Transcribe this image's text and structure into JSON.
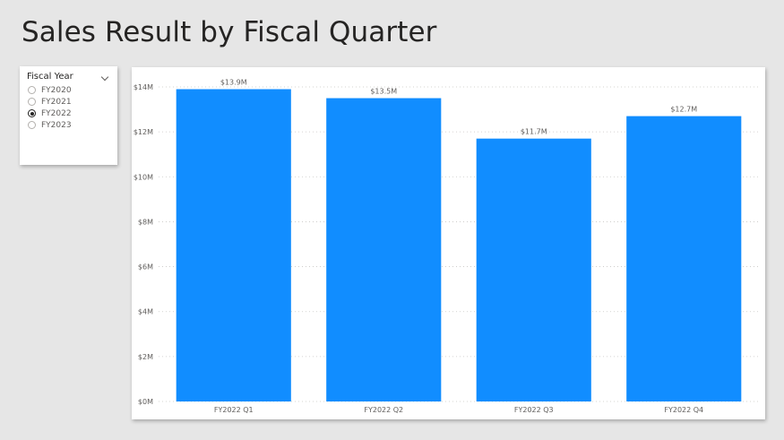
{
  "report": {
    "title": "Sales Result by Fiscal Quarter"
  },
  "slicer": {
    "title": "Fiscal Year",
    "options": [
      {
        "label": "FY2020",
        "selected": false
      },
      {
        "label": "FY2021",
        "selected": false
      },
      {
        "label": "FY2022",
        "selected": true
      },
      {
        "label": "FY2023",
        "selected": false
      }
    ]
  },
  "colors": {
    "bar": "#118dff",
    "background": "#e6e6e6"
  },
  "chart_data": {
    "type": "bar",
    "title": "",
    "xlabel": "",
    "ylabel": "",
    "categories": [
      "FY2022 Q1",
      "FY2022 Q2",
      "FY2022 Q3",
      "FY2022 Q4"
    ],
    "values": [
      13.9,
      13.5,
      11.7,
      12.7
    ],
    "data_labels": [
      "$13.9M",
      "$13.5M",
      "$11.7M",
      "$12.7M"
    ],
    "ylim": [
      0,
      14
    ],
    "y_ticks": [
      0,
      2,
      4,
      6,
      8,
      10,
      12,
      14
    ],
    "y_tick_labels": [
      "$0M",
      "$2M",
      "$4M",
      "$6M",
      "$8M",
      "$10M",
      "$12M",
      "$14M"
    ],
    "grid": true,
    "legend": "none"
  }
}
